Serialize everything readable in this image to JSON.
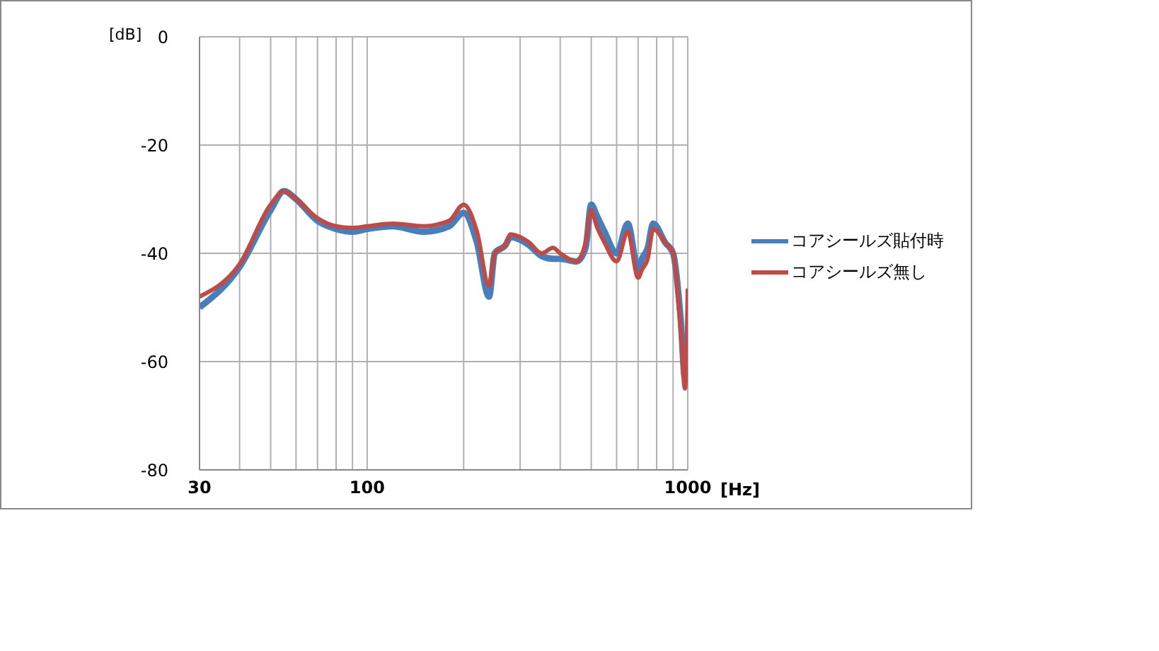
{
  "chart_data": {
    "type": "line",
    "xlabel": "[Hz]",
    "ylabel": "[dB]",
    "x": [
      30,
      40,
      50,
      55,
      60,
      70,
      80,
      90,
      100,
      120,
      150,
      180,
      200,
      220,
      240,
      250,
      270,
      280,
      300,
      320,
      350,
      380,
      400,
      450,
      480,
      500,
      520,
      550,
      600,
      650,
      700,
      720,
      750,
      780,
      850,
      900,
      950,
      980,
      1000
    ],
    "series": [
      {
        "name": "コアシールズ貼付時",
        "color": "#4a7ebb",
        "values": [
          -50,
          -42.5,
          -32,
          -28.5,
          -30,
          -34,
          -35.5,
          -36,
          -35.5,
          -35,
          -36,
          -35,
          -32.5,
          -38,
          -48,
          -40,
          -38.5,
          -37,
          -37.5,
          -38.5,
          -40.5,
          -41,
          -41,
          -41.5,
          -39,
          -31,
          -33,
          -36,
          -40,
          -34.5,
          -43,
          -41,
          -39,
          -34.5,
          -38,
          -40,
          -52,
          -63,
          -62
        ]
      },
      {
        "name": "コアシールズ無し",
        "color": "#be4b48",
        "values": [
          -48,
          -42,
          -31,
          -28.5,
          -30,
          -33.5,
          -35,
          -35.3,
          -35,
          -34.5,
          -35,
          -34,
          -31,
          -36,
          -46,
          -40,
          -38.5,
          -36.5,
          -37,
          -38,
          -40,
          -39,
          -40,
          -41.5,
          -38,
          -32,
          -35,
          -38,
          -41.5,
          -36,
          -44.5,
          -43,
          -41,
          -35.5,
          -38,
          -40,
          -54,
          -65,
          -46.5
        ]
      }
    ],
    "log": "x",
    "xlim": [
      30,
      1000
    ],
    "xticks": [
      30,
      {
        "value": 40,
        "label": null
      },
      {
        "value": 50,
        "label": null
      },
      {
        "value": 60,
        "label": null
      },
      {
        "value": 70,
        "label": null
      },
      {
        "value": 80,
        "label": null
      },
      {
        "value": 90,
        "label": null
      },
      100,
      {
        "value": 200,
        "label": null
      },
      {
        "value": 300,
        "label": null
      },
      {
        "value": 400,
        "label": null
      },
      {
        "value": 500,
        "label": null
      },
      {
        "value": 600,
        "label": null
      },
      {
        "value": 700,
        "label": null
      },
      {
        "value": 800,
        "label": null
      },
      {
        "value": 900,
        "label": null
      },
      1000
    ],
    "ylim": [
      -80,
      0
    ],
    "yticks": [
      -80,
      -60,
      -40,
      -20,
      0
    ],
    "grid": true,
    "legend": "right",
    "marker": "none",
    "line_style": "solid"
  }
}
